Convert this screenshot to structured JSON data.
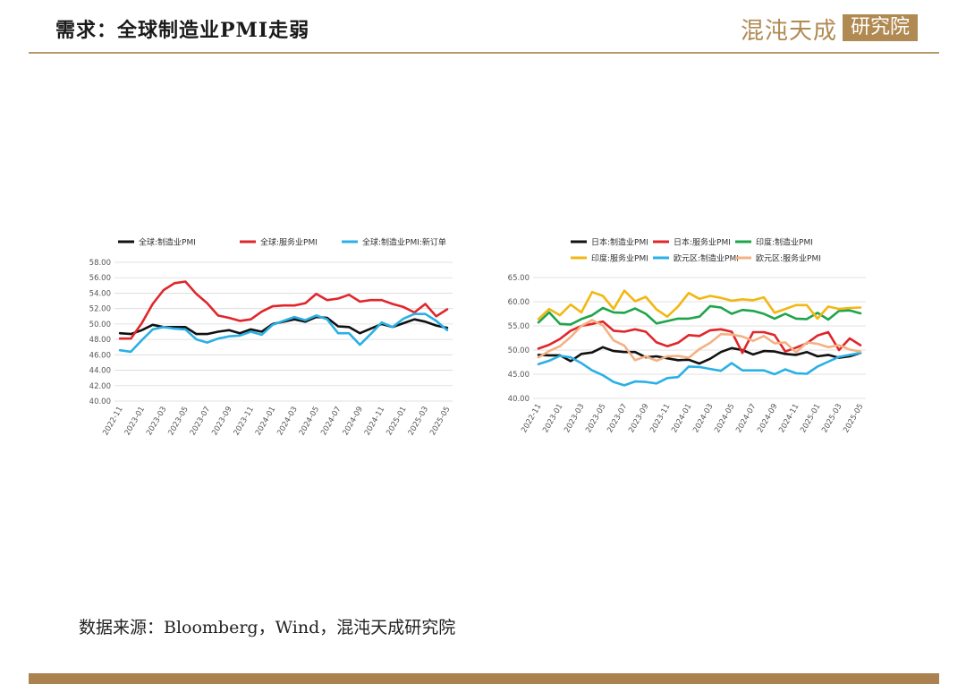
{
  "header": {
    "title": "需求：全球制造业PMI走弱",
    "logo_text": "混沌天成",
    "logo_box_text": "研究院"
  },
  "source": "数据来源：Bloomberg，Wind，混沌天成研究院",
  "colors": {
    "black": "#111111",
    "red": "#e0262b",
    "blue": "#2ab0e4",
    "green": "#1ea54b",
    "yellow": "#f2b713",
    "peach": "#f4b183",
    "accent": "#b08a52"
  },
  "chart_data": [
    {
      "type": "line",
      "grid": "horizontal",
      "legend_position": "top",
      "x": [
        "2022-11",
        "2022-12",
        "2023-01",
        "2023-02",
        "2023-03",
        "2023-04",
        "2023-05",
        "2023-06",
        "2023-07",
        "2023-08",
        "2023-09",
        "2023-10",
        "2023-11",
        "2023-12",
        "2024-01",
        "2024-02",
        "2024-03",
        "2024-04",
        "2024-05",
        "2024-06",
        "2024-07",
        "2024-08",
        "2024-09",
        "2024-10",
        "2024-11",
        "2024-12",
        "2025-01",
        "2025-02",
        "2025-03",
        "2025-04",
        "2025-05"
      ],
      "x_tick_labels": [
        "2022-11",
        "2023-01",
        "2023-03",
        "2023-05",
        "2023-07",
        "2023-09",
        "2023-11",
        "2024-01",
        "2024-03",
        "2024-05",
        "2024-07",
        "2024-09",
        "2024-11",
        "2025-01",
        "2025-03",
        "2025-05"
      ],
      "ylim": [
        40,
        58
      ],
      "y_ticks": [
        "40.00",
        "42.00",
        "44.00",
        "46.00",
        "48.00",
        "50.00",
        "52.00",
        "54.00",
        "56.00",
        "58.00"
      ],
      "series": [
        {
          "name": "全球:制造业PMI",
          "color": "#111111",
          "values": [
            48.8,
            48.7,
            49.2,
            49.9,
            49.6,
            49.6,
            49.6,
            48.7,
            48.7,
            49.0,
            49.2,
            48.8,
            49.3,
            49.0,
            50.0,
            50.3,
            50.6,
            50.3,
            50.9,
            50.8,
            49.7,
            49.6,
            48.8,
            49.4,
            50.0,
            49.6,
            50.1,
            50.6,
            50.3,
            49.8,
            49.5
          ]
        },
        {
          "name": "全球:服务业PMI",
          "color": "#e0262b",
          "values": [
            48.1,
            48.1,
            50.1,
            52.6,
            54.4,
            55.3,
            55.5,
            53.9,
            52.7,
            51.1,
            50.8,
            50.4,
            50.6,
            51.6,
            52.3,
            52.4,
            52.4,
            52.7,
            53.9,
            53.1,
            53.3,
            53.8,
            52.9,
            53.1,
            53.1,
            52.6,
            52.2,
            51.5,
            52.6,
            51.0,
            51.9
          ]
        },
        {
          "name": "全球:制造业PMI:新订单",
          "color": "#2ab0e4",
          "values": [
            46.6,
            46.4,
            47.9,
            49.3,
            49.6,
            49.4,
            49.3,
            48.0,
            47.6,
            48.1,
            48.4,
            48.5,
            49.0,
            48.6,
            49.9,
            50.4,
            50.9,
            50.5,
            51.1,
            50.6,
            48.8,
            48.8,
            47.3,
            48.7,
            50.2,
            49.6,
            50.7,
            51.3,
            51.3,
            50.4,
            49.2
          ]
        }
      ]
    },
    {
      "type": "line",
      "grid": "horizontal",
      "legend_position": "top",
      "x": [
        "2022-11",
        "2022-12",
        "2023-01",
        "2023-02",
        "2023-03",
        "2023-04",
        "2023-05",
        "2023-06",
        "2023-07",
        "2023-08",
        "2023-09",
        "2023-10",
        "2023-11",
        "2023-12",
        "2024-01",
        "2024-02",
        "2024-03",
        "2024-04",
        "2024-05",
        "2024-06",
        "2024-07",
        "2024-08",
        "2024-09",
        "2024-10",
        "2024-11",
        "2024-12",
        "2025-01",
        "2025-02",
        "2025-03",
        "2025-04",
        "2025-05"
      ],
      "x_tick_labels": [
        "2022-11",
        "2023-01",
        "2023-03",
        "2023-05",
        "2023-07",
        "2023-09",
        "2023-11",
        "2024-01",
        "2024-03",
        "2024-05",
        "2024-07",
        "2024-09",
        "2024-11",
        "2025-01",
        "2025-03",
        "2025-05"
      ],
      "ylim": [
        40,
        65
      ],
      "y_ticks": [
        "40.00",
        "45.00",
        "50.00",
        "55.00",
        "60.00",
        "65.00"
      ],
      "series": [
        {
          "name": "日本:制造业PMI",
          "color": "#111111",
          "values": [
            49.0,
            48.9,
            48.9,
            47.7,
            49.2,
            49.5,
            50.6,
            49.8,
            49.6,
            49.6,
            48.5,
            48.7,
            48.3,
            47.9,
            48.0,
            47.2,
            48.2,
            49.6,
            50.4,
            50.0,
            49.1,
            49.8,
            49.7,
            49.2,
            49.0,
            49.6,
            48.7,
            49.0,
            48.4,
            48.7,
            49.4
          ]
        },
        {
          "name": "日本:服务业PMI",
          "color": "#e0262b",
          "values": [
            50.3,
            51.1,
            52.3,
            54.0,
            55.0,
            55.4,
            55.9,
            54.0,
            53.8,
            54.3,
            53.8,
            51.6,
            50.8,
            51.5,
            53.1,
            52.9,
            54.1,
            54.3,
            53.8,
            49.4,
            53.7,
            53.7,
            53.1,
            49.7,
            50.5,
            51.4,
            53.0,
            53.7,
            50.0,
            52.4,
            51.0
          ]
        },
        {
          "name": "印度:制造业PMI",
          "color": "#1ea54b",
          "values": [
            55.7,
            57.8,
            55.4,
            55.3,
            56.4,
            57.2,
            58.7,
            57.8,
            57.7,
            58.6,
            57.5,
            55.5,
            56.0,
            56.5,
            56.5,
            56.9,
            59.1,
            58.8,
            57.5,
            58.3,
            58.1,
            57.5,
            56.5,
            57.5,
            56.5,
            56.4,
            57.7,
            56.3,
            58.1,
            58.2,
            57.6
          ]
        },
        {
          "name": "印度:服务业PMI",
          "color": "#f2b713",
          "values": [
            56.4,
            58.5,
            57.2,
            59.4,
            57.8,
            62.0,
            61.2,
            58.5,
            62.3,
            60.1,
            61.0,
            58.4,
            56.9,
            59.0,
            61.8,
            60.6,
            61.2,
            60.8,
            60.2,
            60.5,
            60.3,
            60.9,
            57.7,
            58.5,
            59.3,
            59.3,
            56.5,
            59.0,
            58.5,
            58.7,
            58.8
          ]
        },
        {
          "name": "欧元区:制造业PMI",
          "color": "#2ab0e4",
          "values": [
            47.1,
            47.8,
            48.8,
            48.5,
            47.3,
            45.8,
            44.8,
            43.4,
            42.7,
            43.5,
            43.4,
            43.1,
            44.2,
            44.4,
            46.6,
            46.5,
            46.1,
            45.7,
            47.3,
            45.8,
            45.8,
            45.8,
            45.0,
            46.0,
            45.2,
            45.1,
            46.6,
            47.6,
            48.6,
            49.0,
            49.4
          ]
        },
        {
          "name": "欧元区:服务业PMI",
          "color": "#f4b183",
          "values": [
            48.5,
            49.8,
            50.8,
            52.7,
            55.0,
            56.2,
            55.1,
            52.0,
            50.9,
            47.9,
            48.7,
            47.8,
            48.7,
            48.8,
            48.4,
            50.2,
            51.5,
            53.3,
            53.2,
            52.8,
            51.9,
            52.9,
            51.4,
            51.6,
            49.5,
            51.6,
            51.3,
            50.6,
            51.0,
            50.1,
            49.7
          ]
        }
      ]
    }
  ]
}
